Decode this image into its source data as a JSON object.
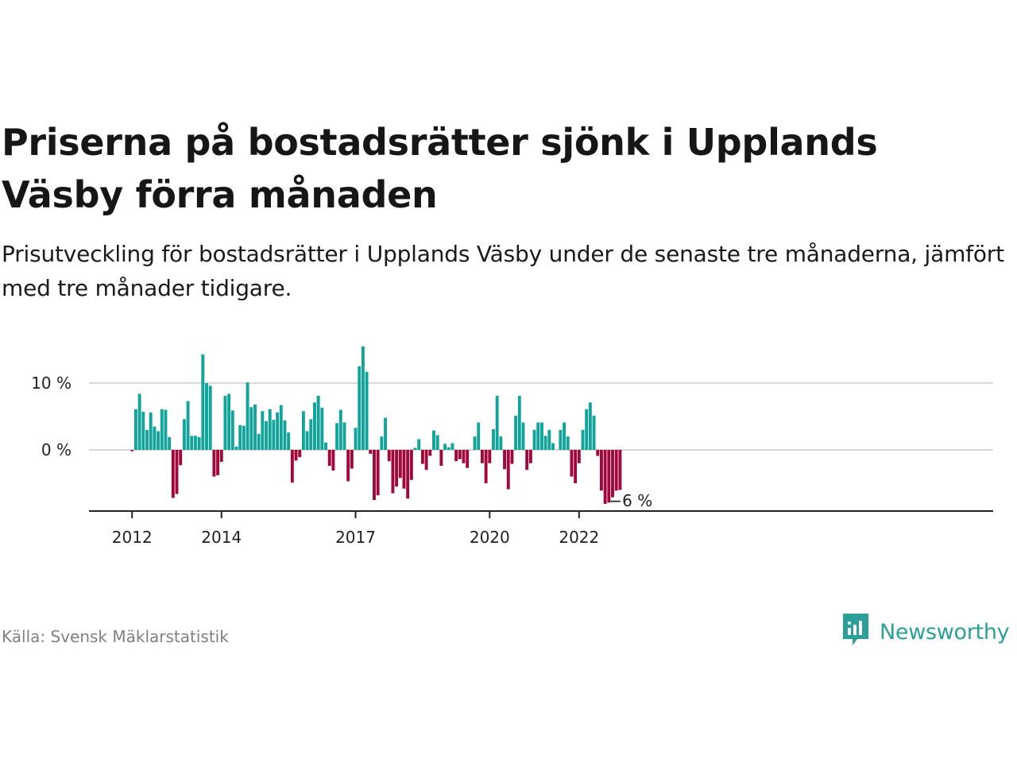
{
  "title": "Priserna på bostadsrätter sjönk i Upplands Väsby förra månaden",
  "subtitle": "Prisutveckling för bostadsrätter i Upplands Väsby under de senaste tre månaderna, jämfört med tre månader tidigare.",
  "source": "Källa: Svensk Mäklarstatistik",
  "brand": {
    "name": "Newsworthy",
    "icon": "newsworthy-logo-icon",
    "color": "#2aa098"
  },
  "colors": {
    "positive": "#12a49a",
    "negative": "#a0073a",
    "grid": "#d9d9d9",
    "axis": "#222222"
  },
  "chart_data": {
    "type": "bar",
    "x_start": "2012-01",
    "x_interval": "month",
    "y_unit": "%",
    "ylim": [
      -9.5,
      15.5
    ],
    "y_ticks": [
      {
        "value": 0,
        "label": "0 %"
      },
      {
        "value": 10,
        "label": "10 %"
      }
    ],
    "x_ticks": [
      {
        "index": 0,
        "label": "2012"
      },
      {
        "index": 24,
        "label": "2014"
      },
      {
        "index": 60,
        "label": "2017"
      },
      {
        "index": 96,
        "label": "2020"
      },
      {
        "index": 120,
        "label": "2022"
      }
    ],
    "end_label": "−6 %",
    "values": [
      -0.2,
      6.1,
      8.4,
      5.7,
      3.0,
      5.6,
      3.5,
      2.8,
      6.1,
      6.0,
      1.9,
      -7.2,
      -6.6,
      -2.3,
      4.6,
      7.3,
      2.1,
      2.1,
      1.9,
      14.3,
      10.0,
      9.6,
      -4.0,
      -3.8,
      -1.8,
      8.1,
      8.4,
      5.9,
      0.5,
      3.7,
      3.6,
      10.1,
      6.4,
      6.8,
      2.4,
      5.8,
      4.3,
      6.1,
      4.5,
      5.6,
      6.7,
      4.4,
      2.6,
      -4.9,
      -1.6,
      -1.1,
      5.8,
      2.8,
      4.6,
      7.1,
      8.1,
      6.3,
      1.1,
      -2.4,
      -3.1,
      4.0,
      6.0,
      4.1,
      -4.7,
      -2.8,
      3.3,
      12.5,
      15.5,
      11.7,
      -0.6,
      -7.5,
      -6.8,
      2.0,
      4.8,
      -1.7,
      -6.5,
      -5.5,
      -4.2,
      -5.8,
      -7.3,
      -4.5,
      0.3,
      1.6,
      -2.1,
      -3.0,
      -0.9,
      2.9,
      2.2,
      -2.4,
      0.9,
      0.4,
      1.0,
      -1.7,
      -1.4,
      -2.0,
      -2.7,
      0,
      2.0,
      4.1,
      -2.0,
      -5.0,
      -2.0,
      3.1,
      8.1,
      2.0,
      -2.9,
      -5.9,
      -2.1,
      5.1,
      8.1,
      4.1,
      -3.0,
      -2.0,
      3.0,
      4.1,
      4.1,
      2.1,
      3.0,
      1.0,
      0,
      3.0,
      4.1,
      2.0,
      -4.0,
      -5.0,
      -2.0,
      3.0,
      6.1,
      7.1,
      5.1,
      -0.9,
      -6.1,
      -8.1,
      -7.9,
      -7.1,
      -6.1,
      -6.0
    ]
  }
}
